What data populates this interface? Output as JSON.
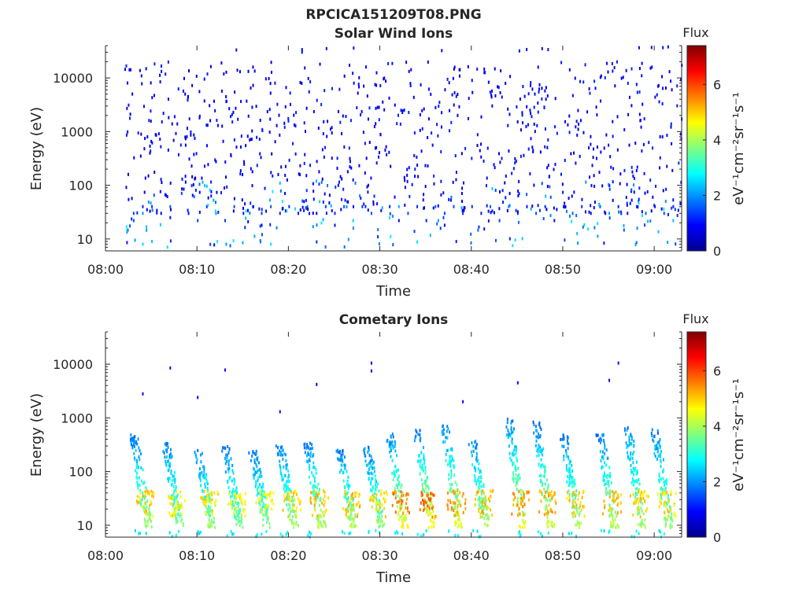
{
  "figure_title": "RPCICA151209T08.PNG",
  "colorbar": {
    "title": "Flux",
    "label": "eV⁻¹cm⁻²sr⁻¹s⁻¹",
    "range": [
      0,
      7.4
    ],
    "ticks": [
      "0",
      "2",
      "4",
      "6"
    ],
    "tick_values": [
      0,
      2,
      4,
      6
    ],
    "colormap": "jet"
  },
  "chart_data": [
    {
      "type": "heatmap",
      "title": "Solar Wind Ions",
      "xlabel": "Time",
      "ylabel": "Energy (eV)",
      "x_scale": "time",
      "y_scale": "log",
      "xlim": [
        "08:00",
        "09:03"
      ],
      "ylim": [
        6,
        40000
      ],
      "xticks": [
        "08:00",
        "08:10",
        "08:20",
        "08:30",
        "08:40",
        "08:50",
        "09:00"
      ],
      "yticks": [
        "10",
        "100",
        "1000",
        "10000"
      ],
      "ytick_values": [
        10,
        100,
        1000,
        10000
      ],
      "time_range": [
        "08:02",
        "09:03"
      ],
      "cells": [
        [
          "08:03",
          30,
          1.4
        ],
        [
          "08:03",
          22,
          1.5
        ],
        [
          "08:04",
          40,
          1.2
        ],
        [
          "08:04",
          30,
          2.1
        ],
        [
          "08:04",
          8,
          2.5
        ],
        [
          "08:05",
          40,
          1.3
        ],
        [
          "08:05",
          9,
          2.3
        ],
        [
          "08:06",
          30,
          1.0
        ],
        [
          "08:07",
          40,
          1.6
        ],
        [
          "08:07",
          25,
          1.0
        ],
        [
          "08:09",
          30,
          1.1
        ],
        [
          "08:10",
          22,
          1.4
        ],
        [
          "08:11",
          40,
          1.2
        ],
        [
          "08:12",
          30,
          2.0
        ],
        [
          "08:13",
          22,
          1.3
        ],
        [
          "08:14",
          40,
          1.5
        ],
        [
          "08:15",
          30,
          1.1
        ],
        [
          "08:16",
          40,
          2.2
        ],
        [
          "08:17",
          30,
          1.4
        ],
        [
          "08:17",
          18,
          1.0
        ],
        [
          "08:18",
          40,
          1.6
        ],
        [
          "08:18",
          8,
          2.6
        ],
        [
          "08:19",
          30,
          1.2
        ],
        [
          "08:20",
          40,
          1.3
        ],
        [
          "08:21",
          30,
          1.1
        ],
        [
          "08:22",
          40,
          1.8
        ],
        [
          "08:23",
          30,
          1.0
        ],
        [
          "08:24",
          40,
          1.4
        ],
        [
          "08:25",
          30,
          1.2
        ],
        [
          "08:25",
          18,
          1.0
        ],
        [
          "08:26",
          40,
          1.5
        ],
        [
          "08:27",
          22,
          2.4
        ],
        [
          "08:28",
          40,
          1.3
        ],
        [
          "08:29",
          30,
          1.5
        ],
        [
          "08:31",
          40,
          1.2
        ],
        [
          "08:32",
          22,
          1.0
        ],
        [
          "08:32",
          40,
          2.2
        ],
        [
          "08:33",
          30,
          1.5
        ],
        [
          "08:34",
          40,
          1.3
        ],
        [
          "08:35",
          22,
          1.1
        ],
        [
          "08:36",
          40,
          1.6
        ],
        [
          "08:37",
          30,
          1.4
        ],
        [
          "08:37",
          18,
          1.0
        ],
        [
          "08:38",
          40,
          1.5
        ],
        [
          "08:39",
          30,
          1.2
        ],
        [
          "08:40",
          40,
          1.3
        ],
        [
          "08:41",
          30,
          1.1
        ],
        [
          "08:42",
          40,
          1.6
        ],
        [
          "08:43",
          22,
          1.4
        ],
        [
          "08:44",
          40,
          2.0
        ],
        [
          "08:45",
          30,
          1.3
        ],
        [
          "08:46",
          40,
          1.1
        ],
        [
          "08:47",
          30,
          1.5
        ],
        [
          "08:48",
          40,
          1.2
        ],
        [
          "08:49",
          22,
          1.0
        ],
        [
          "08:50",
          40,
          1.4
        ],
        [
          "08:51",
          30,
          1.6
        ],
        [
          "08:52",
          40,
          1.3
        ],
        [
          "08:53",
          30,
          1.1
        ],
        [
          "08:54",
          40,
          1.5
        ],
        [
          "08:55",
          30,
          2.1
        ],
        [
          "08:56",
          40,
          1.2
        ],
        [
          "08:57",
          30,
          1.0
        ],
        [
          "08:58",
          40,
          1.4
        ],
        [
          "08:59",
          30,
          1.6
        ],
        [
          "09:00",
          40,
          1.1
        ],
        [
          "09:01",
          30,
          1.5
        ],
        [
          "09:02",
          40,
          1.2
        ],
        [
          "09:02",
          22,
          2.3
        ],
        [
          "09:03",
          30,
          1.0
        ]
      ]
    },
    {
      "type": "heatmap",
      "title": "Cometary Ions",
      "xlabel": "Time",
      "ylabel": "Energy (eV)",
      "x_scale": "time",
      "y_scale": "log",
      "xlim": [
        "08:00",
        "09:03"
      ],
      "ylim": [
        6,
        40000
      ],
      "xticks": [
        "08:00",
        "08:10",
        "08:20",
        "08:30",
        "08:40",
        "08:50",
        "09:00"
      ],
      "yticks": [
        "10",
        "100",
        "1000",
        "10000"
      ],
      "ytick_values": [
        10,
        100,
        1000,
        10000
      ],
      "time_range": [
        "08:03",
        "09:03"
      ],
      "bursts": [
        {
          "time": "08:03",
          "peak_energy": 500,
          "peak_flux": 4.8
        },
        {
          "time": "08:06.5",
          "peak_energy": 350,
          "peak_flux": 4.6
        },
        {
          "time": "08:10",
          "peak_energy": 250,
          "peak_flux": 4.7
        },
        {
          "time": "08:13",
          "peak_energy": 300,
          "peak_flux": 4.5
        },
        {
          "time": "08:16",
          "peak_energy": 250,
          "peak_flux": 4.4
        },
        {
          "time": "08:19",
          "peak_energy": 300,
          "peak_flux": 4.8
        },
        {
          "time": "08:22",
          "peak_energy": 350,
          "peak_flux": 5.0
        },
        {
          "time": "08:25.5",
          "peak_energy": 250,
          "peak_flux": 4.9
        },
        {
          "time": "08:28.5",
          "peak_energy": 300,
          "peak_flux": 4.7
        },
        {
          "time": "08:31",
          "peak_energy": 500,
          "peak_flux": 5.4
        },
        {
          "time": "08:34",
          "peak_energy": 600,
          "peak_flux": 5.6
        },
        {
          "time": "08:37",
          "peak_energy": 800,
          "peak_flux": 5.2
        },
        {
          "time": "08:40",
          "peak_energy": 400,
          "peak_flux": 5.0
        },
        {
          "time": "08:44",
          "peak_energy": 1000,
          "peak_flux": 5.3
        },
        {
          "time": "08:47",
          "peak_energy": 900,
          "peak_flux": 5.1
        },
        {
          "time": "08:50",
          "peak_energy": 500,
          "peak_flux": 4.9
        },
        {
          "time": "08:54",
          "peak_energy": 500,
          "peak_flux": 5.0
        },
        {
          "time": "08:57",
          "peak_energy": 700,
          "peak_flux": 4.8
        },
        {
          "time": "09:00",
          "peak_energy": 600,
          "peak_flux": 4.7
        }
      ],
      "sparse_points": [
        [
          "08:04",
          2800,
          1.0
        ],
        [
          "08:07",
          8500,
          1.0
        ],
        [
          "08:10",
          2400,
          1.0
        ],
        [
          "08:13",
          7800,
          1.0
        ],
        [
          "08:19",
          1300,
          1.0
        ],
        [
          "08:23",
          4200,
          1.0
        ],
        [
          "08:29",
          10500,
          1.0
        ],
        [
          "08:29",
          7500,
          1.0
        ],
        [
          "08:39",
          2000,
          1.0
        ],
        [
          "08:45",
          4500,
          1.0
        ],
        [
          "08:56",
          10500,
          1.0
        ],
        [
          "08:55",
          5000,
          1.0
        ]
      ]
    }
  ]
}
